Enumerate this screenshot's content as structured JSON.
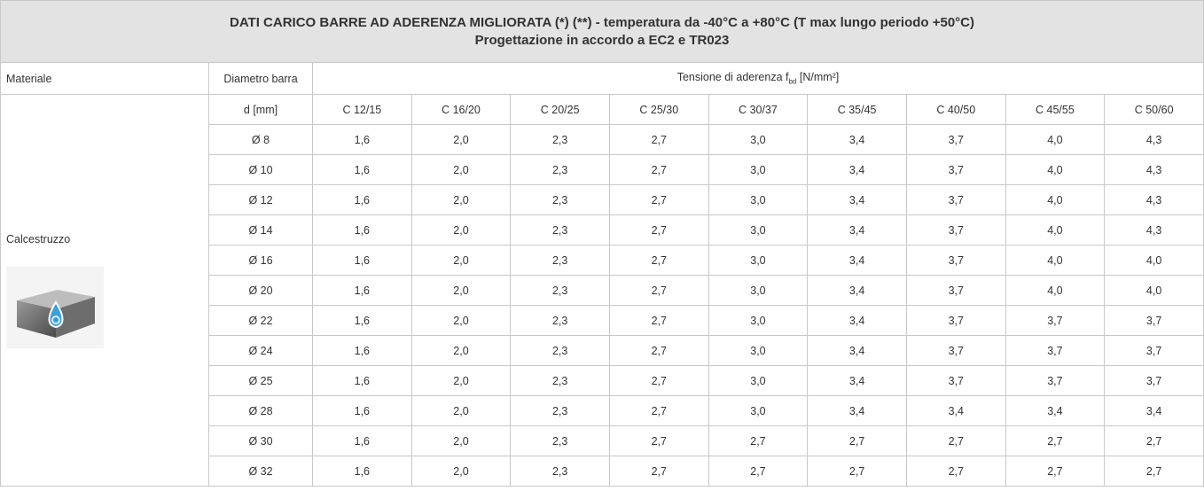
{
  "header": {
    "title_line1": "DATI CARICO BARRE AD ADERENZA MIGLIORATA (*) (**) - temperatura da -40°C a +80°C (T max lungo periodo +50°C)",
    "title_line2": "Progettazione in accordo a EC2 e TR023"
  },
  "table": {
    "col_material": "Materiale",
    "col_diameter": "Diametro barra",
    "col_tension": {
      "text": "Tensione di aderenza f",
      "sub": "bd",
      "unit": " [N/mm²]"
    },
    "material": "Calcestruzzo",
    "diameter_unit": "d [mm]",
    "classes": [
      "C 12/15",
      "C 16/20",
      "C 20/25",
      "C 25/30",
      "C 30/37",
      "C 35/45",
      "C 40/50",
      "C 45/55",
      "C 50/60"
    ],
    "rows": [
      [
        "Ø 8",
        "1,6",
        "2,0",
        "2,3",
        "2,7",
        "3,0",
        "3,4",
        "3,7",
        "4,0",
        "4,3"
      ],
      [
        "Ø 10",
        "1,6",
        "2,0",
        "2,3",
        "2,7",
        "3,0",
        "3,4",
        "3,7",
        "4,0",
        "4,3"
      ],
      [
        "Ø 12",
        "1,6",
        "2,0",
        "2,3",
        "2,7",
        "3,0",
        "3,4",
        "3,7",
        "4,0",
        "4,3"
      ],
      [
        "Ø 14",
        "1,6",
        "2,0",
        "2,3",
        "2,7",
        "3,0",
        "3,4",
        "3,7",
        "4,0",
        "4,3"
      ],
      [
        "Ø 16",
        "1,6",
        "2,0",
        "2,3",
        "2,7",
        "3,0",
        "3,4",
        "3,7",
        "4,0",
        "4,0"
      ],
      [
        "Ø 20",
        "1,6",
        "2,0",
        "2,3",
        "2,7",
        "3,0",
        "3,4",
        "3,7",
        "4,0",
        "4,0"
      ],
      [
        "Ø 22",
        "1,6",
        "2,0",
        "2,3",
        "2,7",
        "3,0",
        "3,4",
        "3,7",
        "3,7",
        "3,7"
      ],
      [
        "Ø 24",
        "1,6",
        "2,0",
        "2,3",
        "2,7",
        "3,0",
        "3,4",
        "3,7",
        "3,7",
        "3,7"
      ],
      [
        "Ø 25",
        "1,6",
        "2,0",
        "2,3",
        "2,7",
        "3,0",
        "3,4",
        "3,7",
        "3,7",
        "3,7"
      ],
      [
        "Ø 28",
        "1,6",
        "2,0",
        "2,3",
        "2,7",
        "3,0",
        "3,4",
        "3,4",
        "3,4",
        "3,4"
      ],
      [
        "Ø 30",
        "1,6",
        "2,0",
        "2,3",
        "2,7",
        "2,7",
        "2,7",
        "2,7",
        "2,7",
        "2,7"
      ],
      [
        "Ø 32",
        "1,6",
        "2,0",
        "2,3",
        "2,7",
        "2,7",
        "2,7",
        "2,7",
        "2,7",
        "2,7"
      ]
    ]
  }
}
